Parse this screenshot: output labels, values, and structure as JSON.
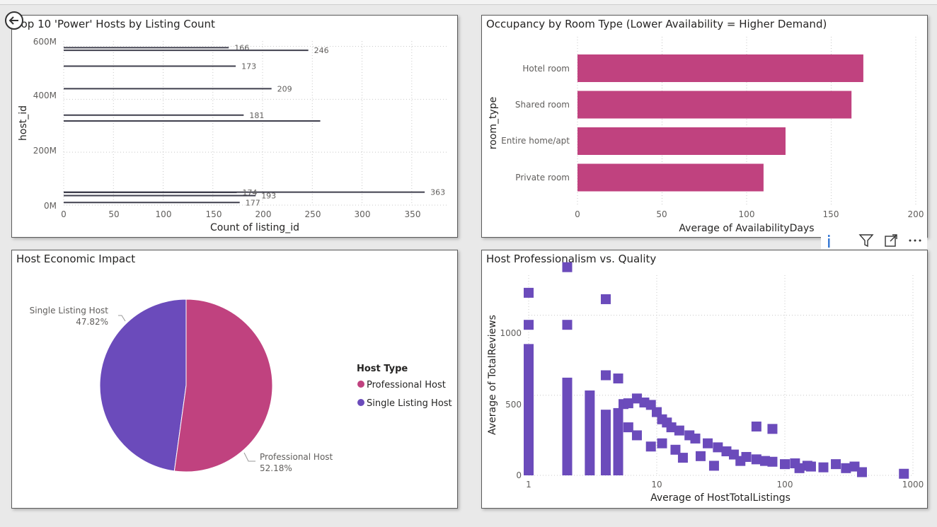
{
  "panels": {
    "top_hosts": {
      "title": "Top 10 'Power' Hosts by Listing Count",
      "y_ticks": [
        "600M",
        "400M",
        "200M",
        "0M"
      ],
      "x_ticks": [
        "0",
        "50",
        "100",
        "150",
        "200",
        "250",
        "300",
        "350"
      ],
      "xlabel": "Count of listing_id",
      "ylabel": "host_id"
    },
    "occupancy": {
      "title": "Occupancy by Room Type (Lower Availability = Higher Demand)",
      "categories": [
        "Hotel room",
        "Shared room",
        "Entire home/apt",
        "Private room"
      ],
      "x_ticks": [
        "0",
        "50",
        "100",
        "150",
        "200"
      ],
      "xlabel": "Average of AvailabilityDays",
      "ylabel": "room_type"
    },
    "economic": {
      "title": "Host Economic Impact",
      "legend_title": "Host Type",
      "legend": [
        "Professional Host",
        "Single Listing Host"
      ],
      "label_single_name": "Single Listing Host",
      "label_single_pct": "47.82%",
      "label_pro_name": "Professional Host",
      "label_pro_pct": "52.18%"
    },
    "quality": {
      "title": "Host Professionalism vs. Quality",
      "y_ticks": [
        "1000",
        "500",
        "0"
      ],
      "x_ticks": [
        "1",
        "10",
        "100",
        "1000"
      ],
      "xlabel": "Average of HostTotalListings",
      "ylabel": "Average of TotalReviews"
    }
  },
  "icons": {
    "back": "back-arrow-icon",
    "toolbar": [
      "info-icon",
      "filter-icon",
      "focus-mode-icon",
      "more-options-icon"
    ]
  },
  "colors": {
    "pink": "#c0427f",
    "purple": "#6b4bbb",
    "line": "#3f3f4d"
  },
  "chart_data": [
    {
      "type": "bar",
      "title": "Top 10 'Power' Hosts by Listing Count",
      "orientation": "horizontal",
      "xlabel": "Count of listing_id",
      "ylabel": "host_id",
      "xlim": [
        0,
        385
      ],
      "ylim": [
        0,
        620000000
      ],
      "points": [
        {
          "host_id": 595000000,
          "count": 166,
          "label": "166"
        },
        {
          "host_id": 585000000,
          "count": 246,
          "label": "246"
        },
        {
          "host_id": 525000000,
          "count": 173,
          "label": "173"
        },
        {
          "host_id": 440000000,
          "count": 209,
          "label": "209"
        },
        {
          "host_id": 340000000,
          "count": 181,
          "label": "181"
        },
        {
          "host_id": 318000000,
          "count": 258,
          "label": ""
        },
        {
          "host_id": 49000000,
          "count": 363,
          "label": "363"
        },
        {
          "host_id": 48000000,
          "count": 174,
          "label": "174"
        },
        {
          "host_id": 36000000,
          "count": 193,
          "label": "193"
        },
        {
          "host_id": 10000000,
          "count": 177,
          "label": "177"
        }
      ]
    },
    {
      "type": "bar",
      "title": "Occupancy by Room Type (Lower Availability = Higher Demand)",
      "orientation": "horizontal",
      "categories": [
        "Hotel room",
        "Shared room",
        "Entire home/apt",
        "Private room"
      ],
      "values": [
        169,
        162,
        123,
        110
      ],
      "xlabel": "Average of AvailabilityDays",
      "ylabel": "room_type",
      "xlim": [
        0,
        200
      ]
    },
    {
      "type": "pie",
      "title": "Host Economic Impact",
      "labels": [
        "Professional Host",
        "Single Listing Host"
      ],
      "values": [
        52.18,
        47.82
      ]
    },
    {
      "type": "scatter",
      "title": "Host Professionalism vs. Quality",
      "xlabel": "Average of HostTotalListings",
      "ylabel": "Average of TotalReviews",
      "x_scale": "log",
      "xlim": [
        1,
        1000
      ],
      "ylim": [
        0,
        1250
      ],
      "columns": [
        {
          "x": 1,
          "top": 820
        },
        {
          "x": 2,
          "top": 610
        },
        {
          "x": 3,
          "top": 530
        },
        {
          "x": 4,
          "top": 410
        },
        {
          "x": 5,
          "top": 420
        }
      ],
      "points": [
        [
          1,
          1140
        ],
        [
          1,
          940
        ],
        [
          2,
          1300
        ],
        [
          2,
          940
        ],
        [
          4,
          1100
        ],
        [
          4,
          625
        ],
        [
          5,
          605
        ],
        [
          5.5,
          445
        ],
        [
          6,
          450
        ],
        [
          7,
          480
        ],
        [
          8,
          455
        ],
        [
          9,
          440
        ],
        [
          10,
          395
        ],
        [
          11,
          350
        ],
        [
          12,
          330
        ],
        [
          13,
          300
        ],
        [
          15,
          280
        ],
        [
          18,
          250
        ],
        [
          20,
          230
        ],
        [
          25,
          200
        ],
        [
          30,
          175
        ],
        [
          35,
          150
        ],
        [
          40,
          130
        ],
        [
          50,
          115
        ],
        [
          60,
          305
        ],
        [
          60,
          100
        ],
        [
          70,
          90
        ],
        [
          80,
          290
        ],
        [
          80,
          85
        ],
        [
          100,
          70
        ],
        [
          120,
          75
        ],
        [
          150,
          60
        ],
        [
          200,
          50
        ],
        [
          250,
          70
        ],
        [
          300,
          45
        ],
        [
          350,
          55
        ],
        [
          400,
          20
        ],
        [
          850,
          10
        ],
        [
          130,
          45
        ],
        [
          160,
          55
        ],
        [
          45,
          90
        ],
        [
          28,
          60
        ],
        [
          16,
          110
        ],
        [
          9,
          180
        ],
        [
          7,
          250
        ],
        [
          6,
          300
        ],
        [
          11,
          200
        ],
        [
          14,
          160
        ],
        [
          22,
          120
        ]
      ]
    }
  ]
}
